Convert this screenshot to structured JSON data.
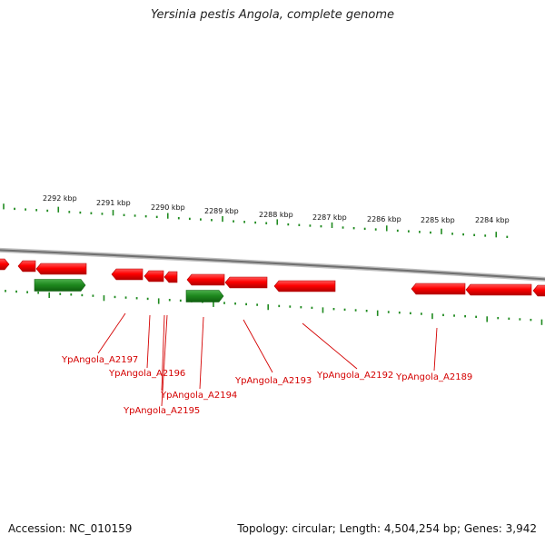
{
  "title": "Yersinia pestis Angola, complete genome",
  "accession_label": "Accession: NC_010159",
  "summary_label": "Topology: circular; Length: 4,504,254 bp; Genes: 3,942",
  "colors": {
    "forward_gene": "#ff0000",
    "reverse_gene": "#1f8a1f",
    "ticks": "#1f8a1f",
    "backbone": "#8a8a8a",
    "label": "#d40000"
  },
  "ruler": [
    {
      "label": "2292 kbp"
    },
    {
      "label": "2291 kbp"
    },
    {
      "label": "2290 kbp"
    },
    {
      "label": "2289 kbp"
    },
    {
      "label": "2288 kbp"
    },
    {
      "label": "2287 kbp"
    },
    {
      "label": "2286 kbp"
    },
    {
      "label": "2285 kbp"
    },
    {
      "label": "2284 kbp"
    }
  ],
  "gene_labels": [
    {
      "name": "YpAngola_A2197"
    },
    {
      "name": "YpAngola_A2196"
    },
    {
      "name": "YpAngola_A2195"
    },
    {
      "name": "YpAngola_A2194"
    },
    {
      "name": "YpAngola_A2193"
    },
    {
      "name": "YpAngola_A2192"
    },
    {
      "name": "YpAngola_A2189"
    }
  ]
}
